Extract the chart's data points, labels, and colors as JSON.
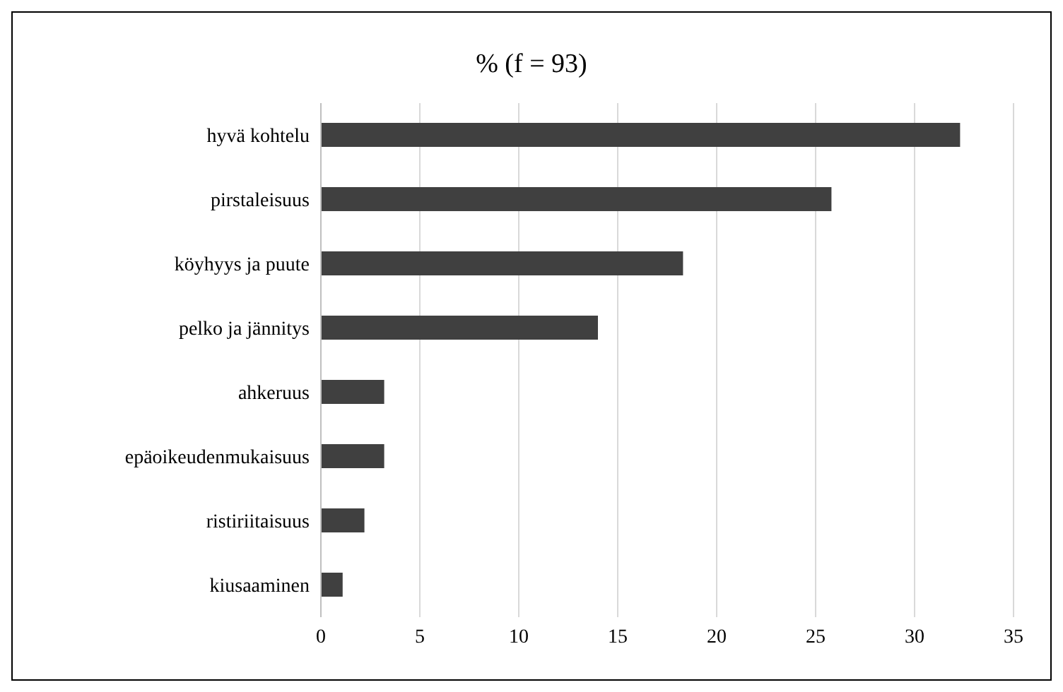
{
  "chart_data": {
    "type": "bar",
    "orientation": "horizontal",
    "title": "% (f = 93)",
    "categories": [
      "hyvä kohtelu",
      "pirstaleisuus",
      "köyhyys ja puute",
      "pelko ja jännitys",
      "ahkeruus",
      "epäoikeudenmukaisuus",
      "ristiriitaisuus",
      "kiusaaminen"
    ],
    "values": [
      32.3,
      25.8,
      18.3,
      14.0,
      3.2,
      3.2,
      2.2,
      1.1
    ],
    "color": "#404040",
    "xlim": [
      0,
      35
    ],
    "xticks": [
      0,
      5,
      10,
      15,
      20,
      25,
      30,
      35
    ],
    "grid": "x",
    "legend": false
  }
}
